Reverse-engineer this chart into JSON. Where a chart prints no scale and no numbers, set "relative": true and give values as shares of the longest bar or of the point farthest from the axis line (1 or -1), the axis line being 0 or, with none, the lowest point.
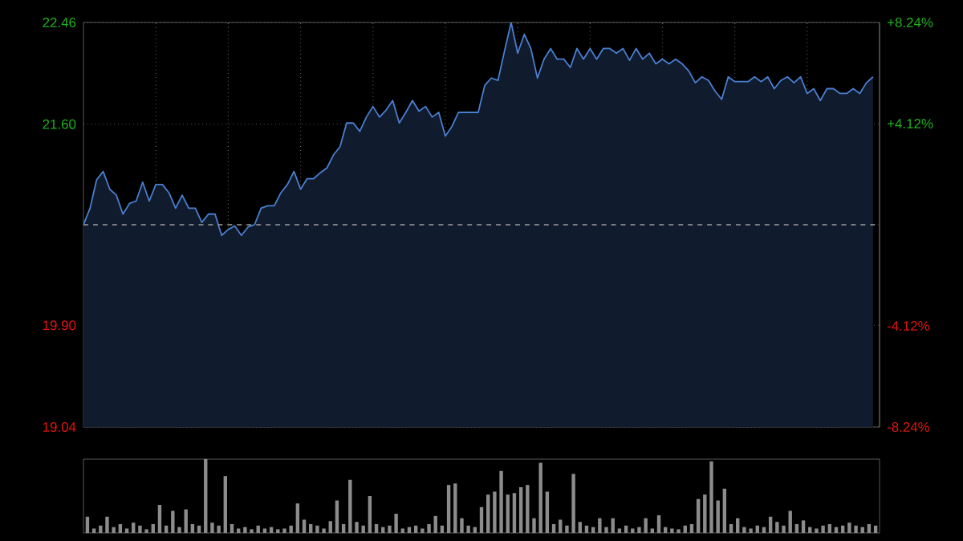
{
  "chart_data": [
    {
      "type": "area",
      "color": "#4a7fd0",
      "grid": true,
      "tick_labels": "y",
      "categories": [
        null,
        null,
        null,
        null,
        null,
        null,
        null,
        null,
        null,
        null,
        null,
        null,
        null,
        null,
        null,
        null,
        null,
        null,
        null,
        null,
        null,
        null,
        null,
        null,
        null,
        null,
        null,
        null,
        null,
        null,
        null,
        null,
        null,
        null,
        null,
        null,
        null,
        null,
        null,
        null,
        null,
        null,
        null,
        null,
        null,
        null,
        null,
        null,
        null,
        null,
        null,
        null,
        null,
        null,
        null,
        null,
        null,
        null,
        null,
        null,
        null,
        null,
        null,
        null,
        null,
        null,
        null,
        null,
        null,
        null,
        null,
        null,
        null,
        null,
        null,
        null,
        null,
        null,
        null,
        null,
        null,
        null,
        null,
        null,
        null,
        null,
        null,
        null,
        null,
        null,
        null,
        null,
        null,
        null,
        null,
        null,
        null,
        null,
        null,
        null,
        null,
        null,
        null,
        null,
        null,
        null,
        null,
        null,
        null,
        null,
        null,
        null,
        null,
        null,
        null,
        null,
        null,
        null,
        null,
        null,
        null
      ],
      "values": [
        20.75,
        20.89,
        21.13,
        21.2,
        21.05,
        21.0,
        20.84,
        20.93,
        20.95,
        21.11,
        20.95,
        21.09,
        21.09,
        21.02,
        20.89,
        21.0,
        20.89,
        20.89,
        20.77,
        20.84,
        20.84,
        20.66,
        20.71,
        20.74,
        20.66,
        20.73,
        20.75,
        20.89,
        20.91,
        20.91,
        21.02,
        21.09,
        21.2,
        21.05,
        21.14,
        21.14,
        21.19,
        21.23,
        21.34,
        21.41,
        21.61,
        21.61,
        21.54,
        21.66,
        21.75,
        21.66,
        21.72,
        21.8,
        21.61,
        21.7,
        21.8,
        21.71,
        21.75,
        21.66,
        21.7,
        21.5,
        21.58,
        21.7,
        21.7,
        21.7,
        21.7,
        21.93,
        21.99,
        21.97,
        22.22,
        22.46,
        22.2,
        22.36,
        22.24,
        21.99,
        22.15,
        22.24,
        22.15,
        22.15,
        22.08,
        22.24,
        22.15,
        22.24,
        22.15,
        22.24,
        22.24,
        22.2,
        22.24,
        22.14,
        22.24,
        22.15,
        22.2,
        22.11,
        22.15,
        22.11,
        22.15,
        22.11,
        22.05,
        21.95,
        22.0,
        21.97,
        21.88,
        21.81,
        22.0,
        21.96,
        21.96,
        21.96,
        22.0,
        21.96,
        22.0,
        21.9,
        21.97,
        22.0,
        21.95,
        22.0,
        21.86,
        21.9,
        21.8,
        21.9,
        21.9,
        21.86,
        21.86,
        21.9,
        21.86,
        21.95,
        22.0
      ],
      "ylim": [
        19.04,
        22.46
      ],
      "yticks": [
        {
          "value": 19.04,
          "label": "19.04"
        },
        {
          "value": 19.9,
          "label": "19.90"
        },
        {
          "value": 20.75,
          "label": null
        },
        {
          "value": 21.6,
          "label": "21.60"
        },
        {
          "value": 22.46,
          "label": "22.46"
        }
      ],
      "y2lim": [
        -8.24,
        8.24
      ],
      "y2ticks": [
        {
          "value": -8.24,
          "label": "-8.24%"
        },
        {
          "value": -4.12,
          "label": "-4.12%"
        },
        {
          "value": 4.12,
          "label": "+4.12%"
        },
        {
          "value": 8.24,
          "label": "+8.24%"
        }
      ],
      "ref_lines": [
        {
          "axis": "y",
          "value": 20.75,
          "line_style": "dashed"
        }
      ]
    },
    {
      "type": "bar",
      "relative": true,
      "color": "#8c8c8c",
      "tick_labels": false,
      "categories": [
        null,
        null,
        null,
        null,
        null,
        null,
        null,
        null,
        null,
        null,
        null,
        null,
        null,
        null,
        null,
        null,
        null,
        null,
        null,
        null,
        null,
        null,
        null,
        null,
        null,
        null,
        null,
        null,
        null,
        null,
        null,
        null,
        null,
        null,
        null,
        null,
        null,
        null,
        null,
        null,
        null,
        null,
        null,
        null,
        null,
        null,
        null,
        null,
        null,
        null,
        null,
        null,
        null,
        null,
        null,
        null,
        null,
        null,
        null,
        null,
        null,
        null,
        null,
        null,
        null,
        null,
        null,
        null,
        null,
        null,
        null,
        null,
        null,
        null,
        null,
        null,
        null,
        null,
        null,
        null,
        null,
        null,
        null,
        null,
        null,
        null,
        null,
        null,
        null,
        null,
        null,
        null,
        null,
        null,
        null,
        null,
        null,
        null,
        null,
        null,
        null,
        null,
        null,
        null,
        null,
        null,
        null,
        null,
        null,
        null,
        null,
        null,
        null,
        null,
        null,
        null,
        null,
        null,
        null,
        null,
        null
      ],
      "values": [
        0.22,
        0.06,
        0.1,
        0.22,
        0.08,
        0.12,
        0.06,
        0.14,
        0.1,
        0.05,
        0.12,
        0.38,
        0.1,
        0.3,
        0.08,
        0.32,
        0.12,
        0.1,
        1,
        0.14,
        0.1,
        0.77,
        0.12,
        0.06,
        0.08,
        0.05,
        0.1,
        0.06,
        0.08,
        0.05,
        0.06,
        0.1,
        0.4,
        0.18,
        0.12,
        0.1,
        0.06,
        0.16,
        0.44,
        0.12,
        0.72,
        0.15,
        0.1,
        0.5,
        0.12,
        0.08,
        0.1,
        0.26,
        0.06,
        0.08,
        0.1,
        0.06,
        0.12,
        0.23,
        0.1,
        0.65,
        0.67,
        0.2,
        0.1,
        0.08,
        0.35,
        0.52,
        0.56,
        0.84,
        0.52,
        0.54,
        0.62,
        0.65,
        0.2,
        0.95,
        0.56,
        0.12,
        0.18,
        0.1,
        0.8,
        0.15,
        0.1,
        0.08,
        0.2,
        0.08,
        0.2,
        0.06,
        0.1,
        0.06,
        0.08,
        0.2,
        0.06,
        0.24,
        0.08,
        0.06,
        0.05,
        0.1,
        0.12,
        0.46,
        0.52,
        0.97,
        0.44,
        0.6,
        0.12,
        0.2,
        0.08,
        0.06,
        0.1,
        0.08,
        0.22,
        0.15,
        0.1,
        0.3,
        0.12,
        0.17,
        0.08,
        0.06,
        0.1,
        0.12,
        0.08,
        0.1,
        0.14,
        0.1,
        0.08,
        0.12,
        0.1
      ]
    }
  ]
}
